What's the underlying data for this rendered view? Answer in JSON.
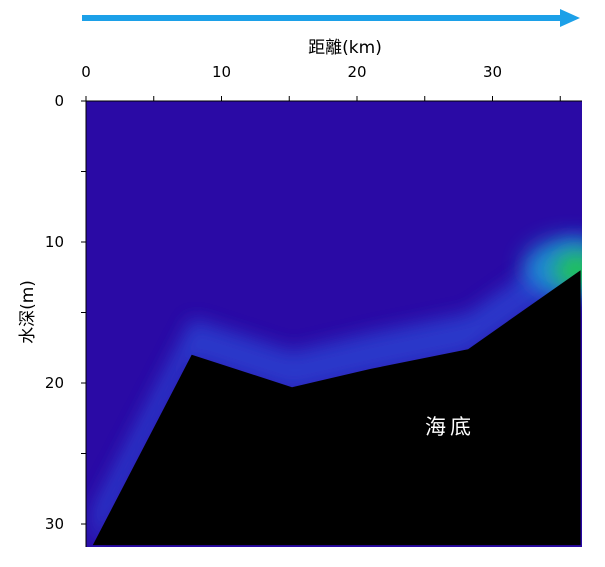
{
  "chart_data": {
    "type": "area",
    "title": "",
    "xlabel": "距離(km)",
    "ylabel": "水深(m)",
    "x_axis_position": "top",
    "y_axis_inverted": true,
    "xlim": [
      0,
      36.5
    ],
    "ylim": [
      0,
      31.5
    ],
    "x_ticks": [
      0,
      10,
      20,
      30
    ],
    "y_ticks": [
      0,
      10,
      20,
      30
    ],
    "x_tick_labels": [
      "0",
      "10",
      "20",
      "30"
    ],
    "y_tick_labels": [
      "0",
      "10",
      "20",
      "30"
    ],
    "direction_arrow": "left-to-right",
    "colors": {
      "arrow": "#1ca0e8",
      "water": "#2a0aa5",
      "seabed": "#000000",
      "bottom_layer": "#2c3fd0",
      "hotspot_inner": "#22cc44",
      "hotspot_mid": "#1a9ad8"
    },
    "seabed_profile": {
      "x": [
        0.5,
        7.8,
        15.2,
        21,
        28.2,
        36.5,
        36.5,
        0.5
      ],
      "y": [
        31.5,
        18,
        20.3,
        19,
        17.6,
        12,
        31.5,
        31.5
      ]
    },
    "seabed_label": "海底"
  }
}
